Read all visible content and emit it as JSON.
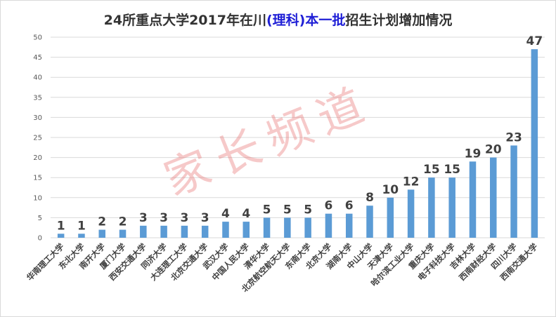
{
  "title": {
    "prefix": "24所重点大学2017年在川",
    "highlight": "(理科)本一批",
    "suffix": "招生计划增加情况"
  },
  "watermark": "家长频道",
  "colors": {
    "bar": "#5b9bd5",
    "grid": "#d9d9d9",
    "title_highlight": "#1f1fd6",
    "watermark": "#e87878"
  },
  "chart_data": {
    "type": "bar",
    "title": "24所重点大学2017年在川(理科)本一批招生计划增加情况",
    "categories": [
      "华南理工大学",
      "东北大学",
      "南开大学",
      "厦门大学",
      "西安交通大学",
      "同济大学",
      "大连理工大学",
      "北京交通大学",
      "武汉大学",
      "中国人民大学",
      "清华大学",
      "北京航空航天大学",
      "东南大学",
      "北京大学",
      "湖南大学",
      "中山大学",
      "天津大学",
      "哈尔滨工业大学",
      "重庆大学",
      "电子科技大学",
      "吉林大学",
      "西南财经大学",
      "四川大学",
      "西南交通大学"
    ],
    "values": [
      1,
      1,
      2,
      2,
      3,
      3,
      3,
      3,
      4,
      4,
      5,
      5,
      5,
      6,
      6,
      8,
      10,
      12,
      15,
      15,
      19,
      20,
      23,
      47
    ],
    "ylim": [
      0,
      50
    ],
    "yticks": [
      0,
      5,
      10,
      15,
      20,
      25,
      30,
      35,
      40,
      45,
      50
    ],
    "grid": true,
    "legend": "none",
    "data_labels": true
  }
}
